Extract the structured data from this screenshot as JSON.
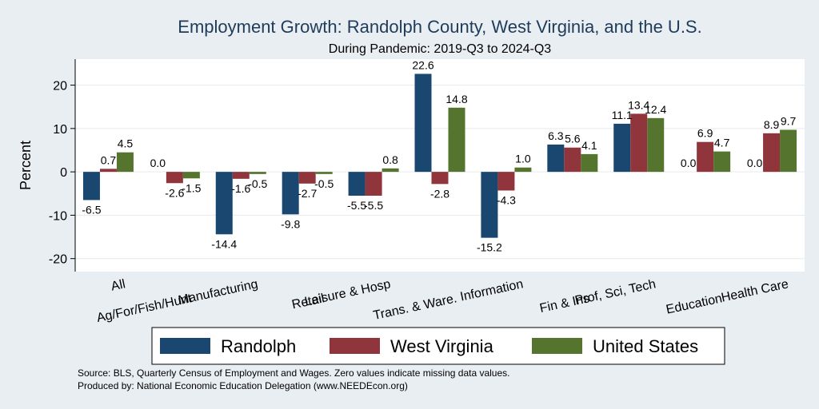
{
  "chart_data": {
    "type": "bar",
    "title": "Employment Growth: Randolph County, West Virginia, and the U.S.",
    "subtitle": "During Pandemic: 2019-Q3 to 2024-Q3",
    "ylabel": "Percent",
    "xlabel": "",
    "ylim": [
      -23,
      26
    ],
    "yticks": [
      -20,
      -10,
      0,
      10,
      20
    ],
    "grid": true,
    "legend_position": "bottom",
    "categories": [
      "All",
      "Ag/For/Fish/Hunt",
      "Manufacturing",
      "Retail",
      "Leisure & Hosp",
      "Trans. & Ware.",
      "Information",
      "Fin & Ins",
      "Prof, Sci, Tech",
      "Education",
      "Health Care"
    ],
    "series": [
      {
        "name": "Randolph",
        "color": "#1a476f",
        "values": [
          -6.5,
          0.0,
          -14.4,
          -9.8,
          -5.5,
          22.6,
          -15.2,
          6.3,
          11.1,
          0.0,
          0.0
        ]
      },
      {
        "name": "West Virginia",
        "color": "#90353b",
        "values": [
          0.7,
          -2.6,
          -1.6,
          -2.7,
          -5.5,
          -2.8,
          -4.3,
          5.6,
          13.4,
          6.9,
          8.9
        ]
      },
      {
        "name": "United States",
        "color": "#55752f",
        "values": [
          4.5,
          -1.5,
          -0.5,
          -0.5,
          0.8,
          14.8,
          1.0,
          4.1,
          12.4,
          4.7,
          9.7
        ]
      }
    ],
    "notes": [
      "Source: BLS, Quarterly Census of Employment and Wages. Zero values indicate missing data values.",
      "Produced by: National Economic Education Delegation (www.NEEDEcon.org)"
    ]
  }
}
